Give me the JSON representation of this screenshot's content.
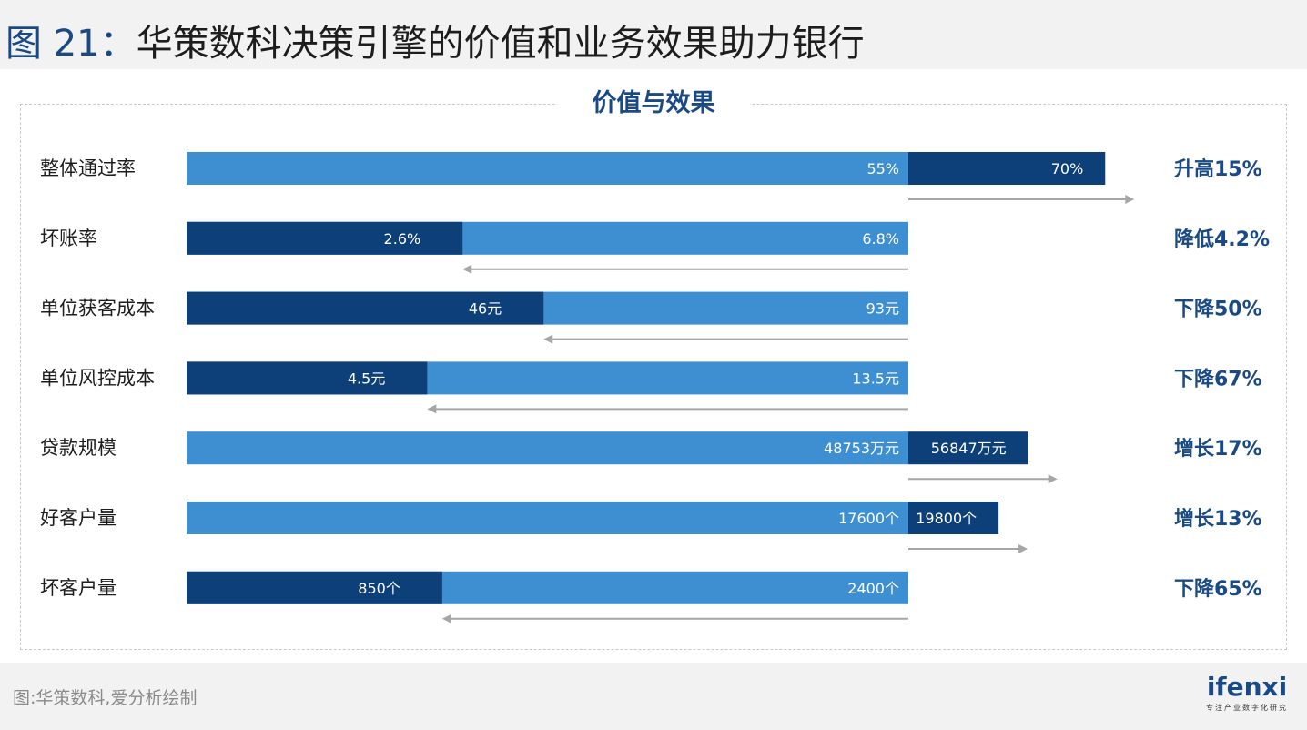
{
  "figure": {
    "number": "图 21",
    "separator": "：",
    "title": "华策数科决策引擎的价值和业务效果助力银行"
  },
  "panel_title": "价值与效果",
  "source": "图:华策数科,爱分析绘制",
  "logo": {
    "word": "ifenxi",
    "tagline": "专注产业数字化研究"
  },
  "colors": {
    "light_bar": "#3d8fd1",
    "dark_bar": "#0d3f78",
    "arrow": "#a6a6a6",
    "change_text": "#1a4a86"
  },
  "chart_data": {
    "type": "bar",
    "orientation": "horizontal",
    "note": "Each row compares a before value and an after value; shared baseline at the before value.",
    "rows": [
      {
        "label": "整体通过率",
        "before": 55,
        "after": 70,
        "before_label": "55%",
        "after_label": "70%",
        "change": "升高15%",
        "direction": "up"
      },
      {
        "label": "坏账率",
        "before": 6.8,
        "after": 2.6,
        "before_label": "6.8%",
        "after_label": "2.6%",
        "change": "降低4.2%",
        "direction": "down"
      },
      {
        "label": "单位获客成本",
        "before": 93,
        "after": 46,
        "before_label": "93元",
        "after_label": "46元",
        "change": "下降50%",
        "direction": "down"
      },
      {
        "label": "单位风控成本",
        "before": 13.5,
        "after": 4.5,
        "before_label": "13.5元",
        "after_label": "4.5元",
        "change": "下降67%",
        "direction": "down"
      },
      {
        "label": "贷款规模",
        "before": 48753,
        "after": 56847,
        "before_label": "48753万元",
        "after_label": "56847万元",
        "change": "增长17%",
        "direction": "up"
      },
      {
        "label": "好客户量",
        "before": 17600,
        "after": 19800,
        "before_label": "17600个",
        "after_label": "19800个",
        "change": "增长13%",
        "direction": "up"
      },
      {
        "label": "坏客户量",
        "before": 2400,
        "after": 850,
        "before_label": "2400个",
        "after_label": "850个",
        "change": "下降65%",
        "direction": "down"
      }
    ]
  }
}
